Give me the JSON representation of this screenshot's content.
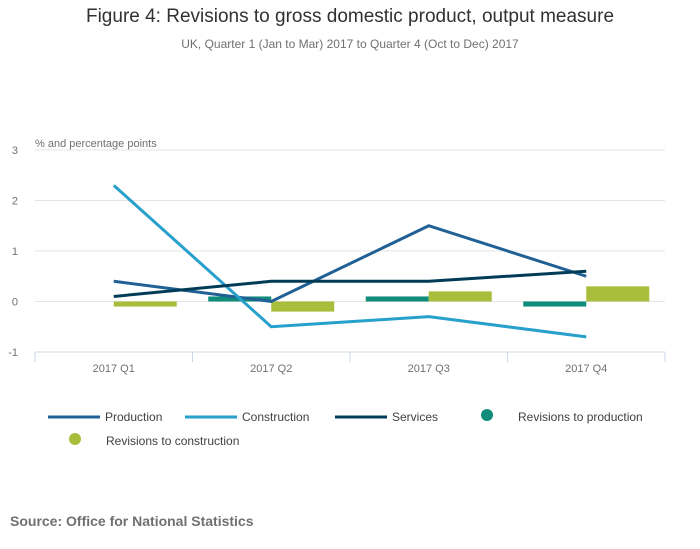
{
  "chart_data": {
    "type": "bar",
    "title": "Figure 4: Revisions to gross domestic product, output measure",
    "subtitle": "UK, Quarter 1 (Jan to Mar) 2017 to Quarter 4 (Oct to Dec) 2017",
    "xlabel": "",
    "ylabel": "% and percentage points",
    "ylim": [
      -1,
      3
    ],
    "yticks": [
      3,
      2,
      1,
      0,
      -1
    ],
    "grid": true,
    "categories": [
      "2017 Q1",
      "2017 Q2",
      "2017 Q3",
      "2017 Q4"
    ],
    "series": [
      {
        "name": "Production",
        "kind": "line",
        "color": "#206095",
        "values": [
          0.4,
          0.0,
          1.5,
          0.5
        ]
      },
      {
        "name": "Construction",
        "kind": "line",
        "color": "#27a0cc",
        "values": [
          2.3,
          -0.5,
          -0.3,
          -0.7
        ]
      },
      {
        "name": "Services",
        "kind": "line",
        "color": "#003c57",
        "values": [
          0.1,
          0.4,
          0.4,
          0.6
        ]
      },
      {
        "name": "Revisions to production",
        "kind": "bar",
        "color": "#118c7b",
        "values": [
          0.0,
          0.1,
          0.1,
          -0.1
        ]
      },
      {
        "name": "Revisions to construction",
        "kind": "bar",
        "color": "#a8bd3a",
        "values": [
          -0.1,
          -0.2,
          0.2,
          0.3
        ]
      }
    ],
    "legend_position": "bottom"
  },
  "source": "Source: Office for National Statistics"
}
